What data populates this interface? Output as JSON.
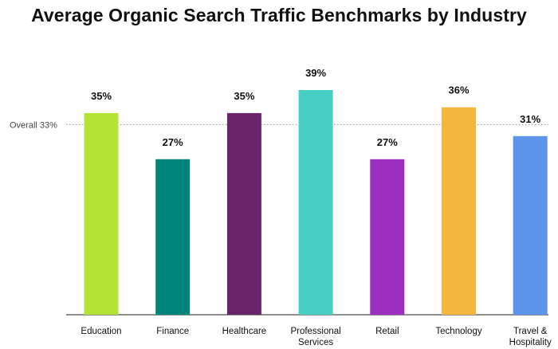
{
  "chart_data": {
    "type": "bar",
    "title": "Average Organic Search Traffic Benchmarks by Industry",
    "categories": [
      [
        "Education"
      ],
      [
        "Finance"
      ],
      [
        "Healthcare"
      ],
      [
        "Professional",
        "Services"
      ],
      [
        "Retail"
      ],
      [
        "Technology"
      ],
      [
        "Travel &",
        "Hospitality"
      ]
    ],
    "values": [
      35,
      27,
      35,
      39,
      27,
      36,
      31
    ],
    "value_labels": [
      "35%",
      "27%",
      "35%",
      "39%",
      "27%",
      "36%",
      "31%"
    ],
    "colors": [
      "#b5e236",
      "#00857a",
      "#6a2469",
      "#48cfc3",
      "#9d2fc0",
      "#f4b63f",
      "#5b94e8"
    ],
    "ylim": [
      0,
      39
    ],
    "reference_line": {
      "label": "Overall 33%",
      "value": 33
    },
    "xlabel": "",
    "ylabel": "",
    "grid": false,
    "legend": "none"
  }
}
